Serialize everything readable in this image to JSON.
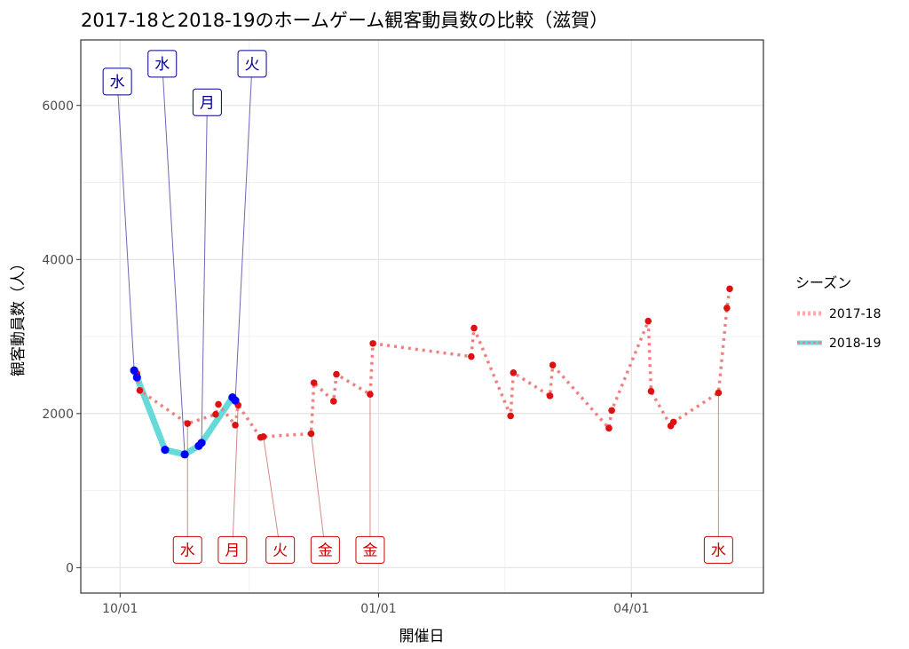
{
  "chart_data": {
    "type": "line",
    "title": "2017-18と2018-19のホームゲーム観客動員数の比較（滋賀）",
    "xlabel": "開催日",
    "ylabel": "観客動員数（人）",
    "x_ticks": [
      {
        "label": "10/01",
        "day": 0
      },
      {
        "label": "01/01",
        "day": 92
      },
      {
        "label": "04/01",
        "day": 182
      }
    ],
    "y_ticks": [
      0,
      2000,
      4000,
      6000
    ],
    "xlim": [
      -14,
      229
    ],
    "ylim": [
      -330,
      6850
    ],
    "grid": true,
    "legend": {
      "title": "シーズン",
      "position": "right",
      "entries": [
        {
          "name": "2017-18",
          "color": "#F8766D"
        },
        {
          "name": "2018-19",
          "color": "#00BFC4"
        }
      ]
    },
    "series": [
      {
        "name": "2017-18",
        "line_color": "#f08080",
        "point_color": "#dd1111",
        "points": [
          {
            "day": 6,
            "value": 2520
          },
          {
            "day": 7,
            "value": 2300
          },
          {
            "day": 24,
            "value": 1870
          },
          {
            "day": 34,
            "value": 1990
          },
          {
            "day": 35,
            "value": 2120
          },
          {
            "day": 41,
            "value": 1850
          },
          {
            "day": 42,
            "value": 2110
          },
          {
            "day": 50,
            "value": 1690
          },
          {
            "day": 51,
            "value": 1700
          },
          {
            "day": 68,
            "value": 1740
          },
          {
            "day": 69,
            "value": 2400
          },
          {
            "day": 76,
            "value": 2160
          },
          {
            "day": 77,
            "value": 2510
          },
          {
            "day": 89,
            "value": 2250
          },
          {
            "day": 90,
            "value": 2910
          },
          {
            "day": 125,
            "value": 2740
          },
          {
            "day": 126,
            "value": 3110
          },
          {
            "day": 139,
            "value": 1970
          },
          {
            "day": 140,
            "value": 2530
          },
          {
            "day": 153,
            "value": 2230
          },
          {
            "day": 154,
            "value": 2630
          },
          {
            "day": 174,
            "value": 1810
          },
          {
            "day": 175,
            "value": 2040
          },
          {
            "day": 188,
            "value": 3200
          },
          {
            "day": 189,
            "value": 2290
          },
          {
            "day": 196,
            "value": 1840
          },
          {
            "day": 197,
            "value": 1890
          },
          {
            "day": 213,
            "value": 2270
          },
          {
            "day": 216,
            "value": 3370
          },
          {
            "day": 217,
            "value": 3620
          }
        ]
      },
      {
        "name": "2018-19",
        "line_color": "#66d9d9",
        "point_color": "#0000ff",
        "points": [
          {
            "day": 5,
            "value": 2560
          },
          {
            "day": 6,
            "value": 2470
          },
          {
            "day": 16,
            "value": 1530
          },
          {
            "day": 23,
            "value": 1470
          },
          {
            "day": 28,
            "value": 1580
          },
          {
            "day": 29,
            "value": 1620
          },
          {
            "day": 40,
            "value": 2210
          },
          {
            "day": 41,
            "value": 2170
          }
        ]
      }
    ],
    "annotations": [
      {
        "text": "水",
        "series": "2018-19",
        "day": 5,
        "value": 2560,
        "label_day": -1,
        "label_value": 6310
      },
      {
        "text": "水",
        "series": "2018-19",
        "day": 23,
        "value": 1470,
        "label_day": 15,
        "label_value": 6540
      },
      {
        "text": "月",
        "series": "2018-19",
        "day": 29,
        "value": 1620,
        "label_day": 31,
        "label_value": 6040
      },
      {
        "text": "火",
        "series": "2018-19",
        "day": 41,
        "value": 2170,
        "label_day": 47,
        "label_value": 6540
      },
      {
        "text": "水",
        "series": "2017-18",
        "day": 24,
        "value": 1870,
        "label_day": 24,
        "label_value": 230
      },
      {
        "text": "月",
        "series": "2017-18",
        "day": 42,
        "value": 2110,
        "label_day": 40,
        "label_value": 230
      },
      {
        "text": "火",
        "series": "2017-18",
        "day": 51,
        "value": 1700,
        "label_day": 57,
        "label_value": 230
      },
      {
        "text": "金",
        "series": "2017-18",
        "day": 68,
        "value": 1740,
        "label_day": 73,
        "label_value": 230
      },
      {
        "text": "金",
        "series": "2017-18",
        "day": 89,
        "value": 2250,
        "label_day": 89,
        "label_value": 230
      },
      {
        "text": "水",
        "series": "2017-18",
        "day": 213,
        "value": 2270,
        "label_day": 213,
        "label_value": 230
      }
    ]
  }
}
